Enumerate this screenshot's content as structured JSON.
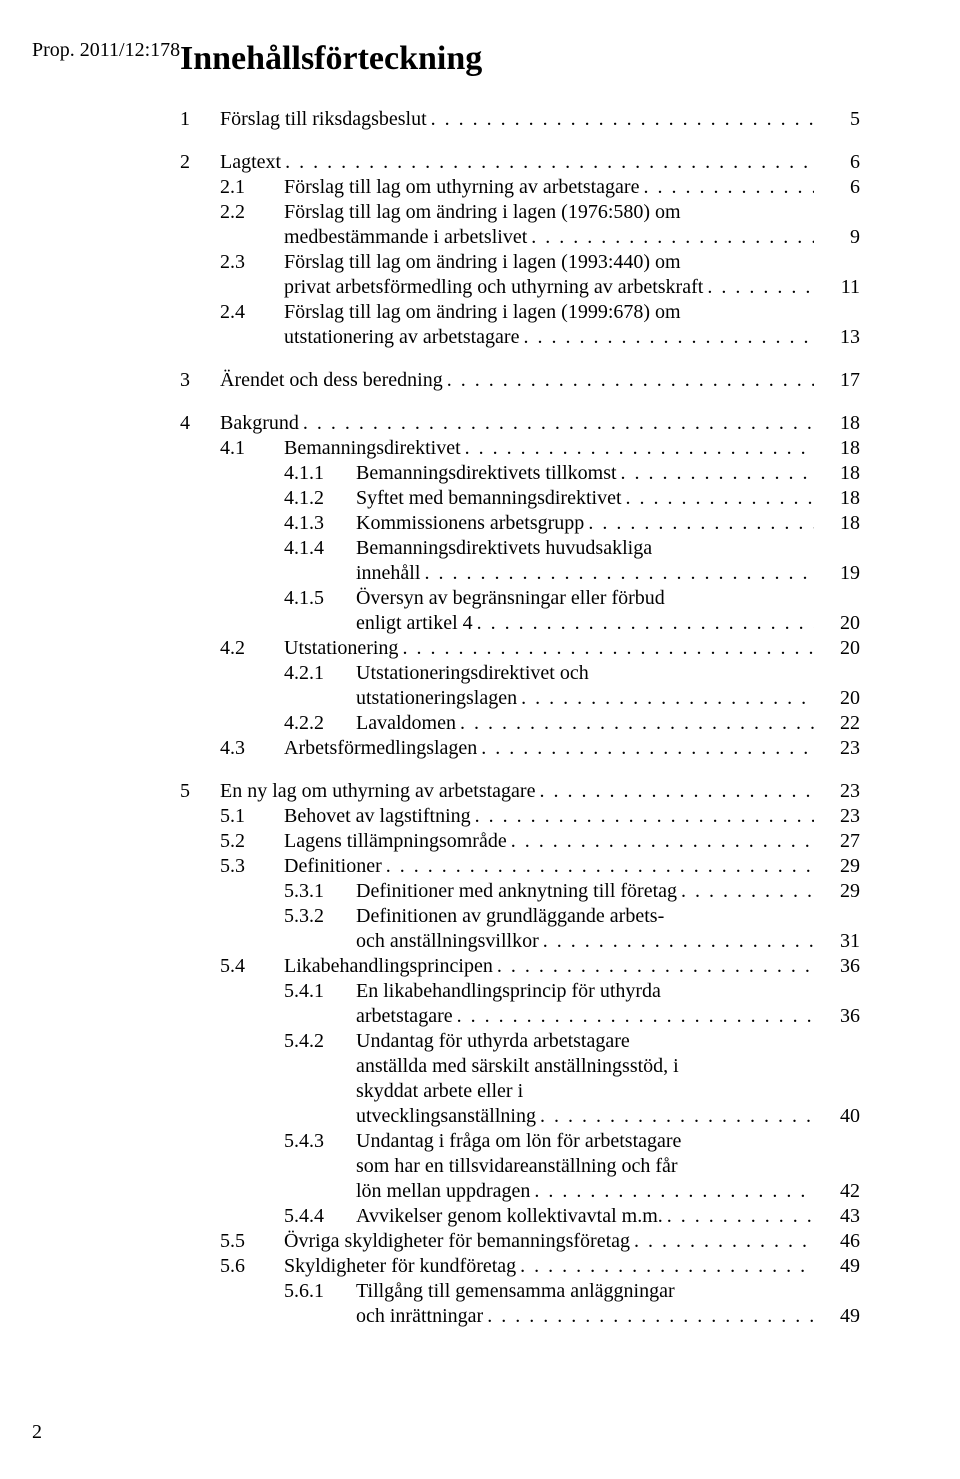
{
  "doc_ref": "Prop. 2011/12:178",
  "title": "Innehållsförteckning",
  "page_number": "2",
  "toc": {
    "l1": [
      {
        "num": "1",
        "title": "Förslag till riksdagsbeslut",
        "page": "5"
      },
      {
        "num": "2",
        "title": "Lagtext",
        "page": "6"
      },
      {
        "num": "3",
        "title": "Ärendet och dess beredning",
        "page": "17"
      },
      {
        "num": "4",
        "title": "Bakgrund",
        "page": "18"
      },
      {
        "num": "5",
        "title": "En ny lag om uthyrning av arbetstagare",
        "page": "23"
      }
    ],
    "s2": [
      {
        "num": "2.1",
        "title": "Förslag till lag om uthyrning av arbetstagare",
        "page": "6"
      },
      {
        "num": "2.2",
        "title_a": "Förslag till lag om ändring i lagen (1976:580) om",
        "title_b": "medbestämmande i arbetslivet",
        "page": "9"
      },
      {
        "num": "2.3",
        "title_a": "Förslag till lag om ändring i lagen (1993:440) om",
        "title_b": "privat arbetsförmedling och uthyrning av arbetskraft",
        "page": "11"
      },
      {
        "num": "2.4",
        "title_a": "Förslag till lag om ändring i lagen (1999:678) om",
        "title_b": "utstationering av arbetstagare",
        "page": "13"
      }
    ],
    "s4": {
      "a": {
        "num": "4.1",
        "title": "Bemanningsdirektivet",
        "page": "18"
      },
      "a1": {
        "num": "4.1.1",
        "title": "Bemanningsdirektivets tillkomst",
        "page": "18"
      },
      "a2": {
        "num": "4.1.2",
        "title": "Syftet med bemanningsdirektivet",
        "page": "18"
      },
      "a3": {
        "num": "4.1.3",
        "title": "Kommissionens arbetsgrupp",
        "page": "18"
      },
      "a4": {
        "num": "4.1.4",
        "title_a": "Bemanningsdirektivets huvudsakliga",
        "title_b": "innehåll",
        "page": "19"
      },
      "a5": {
        "num": "4.1.5",
        "title_a": "Översyn av begränsningar eller förbud",
        "title_b": "enligt artikel 4",
        "page": "20"
      },
      "b": {
        "num": "4.2",
        "title": "Utstationering",
        "page": "20"
      },
      "b1": {
        "num": "4.2.1",
        "title_a": "Utstationeringsdirektivet och",
        "title_b": "utstationeringslagen",
        "page": "20"
      },
      "b2": {
        "num": "4.2.2",
        "title": "Lavaldomen",
        "page": "22"
      },
      "c": {
        "num": "4.3",
        "title": "Arbetsförmedlingslagen",
        "page": "23"
      }
    },
    "s5": {
      "a": {
        "num": "5.1",
        "title": "Behovet av lagstiftning",
        "page": "23"
      },
      "b": {
        "num": "5.2",
        "title": "Lagens tillämpningsområde",
        "page": "27"
      },
      "c": {
        "num": "5.3",
        "title": "Definitioner",
        "page": "29"
      },
      "c1": {
        "num": "5.3.1",
        "title": "Definitioner med anknytning till företag",
        "page": "29"
      },
      "c2": {
        "num": "5.3.2",
        "title_a": "Definitionen av grundläggande arbets-",
        "title_b": "och anställningsvillkor",
        "page": "31"
      },
      "d": {
        "num": "5.4",
        "title": "Likabehandlingsprincipen",
        "page": "36"
      },
      "d1": {
        "num": "5.4.1",
        "title_a": "En likabehandlingsprincip för uthyrda",
        "title_b": "arbetstagare",
        "page": "36"
      },
      "d2": {
        "num": "5.4.2",
        "title_a": "Undantag för uthyrda arbetstagare",
        "title_b": "anställda med särskilt anställningsstöd, i",
        "title_c": "skyddat arbete eller i",
        "title_d": "utvecklingsanställning",
        "page": "40"
      },
      "d3": {
        "num": "5.4.3",
        "title_a": "Undantag i fråga om lön för arbetstagare",
        "title_b": "som har en tillsvidareanställning och får",
        "title_c": "lön mellan uppdragen",
        "page": "42"
      },
      "d4": {
        "num": "5.4.4",
        "title": "Avvikelser genom kollektivavtal m.m.",
        "page": "43"
      },
      "e": {
        "num": "5.5",
        "title": "Övriga skyldigheter för bemanningsföretag",
        "page": "46"
      },
      "f": {
        "num": "5.6",
        "title": "Skyldigheter för kundföretag",
        "page": "49"
      },
      "f1": {
        "num": "5.6.1",
        "title_a": "Tillgång till gemensamma anläggningar",
        "title_b": "och inrättningar",
        "page": "49"
      }
    }
  }
}
